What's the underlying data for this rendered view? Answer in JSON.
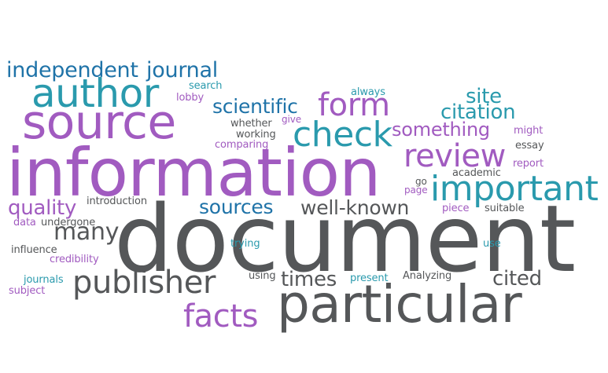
{
  "palette": {
    "teal": "#2a9aad",
    "purple": "#a15bc0",
    "dark": "#555759",
    "blue": "#1f73a8"
  },
  "words": [
    "document",
    "information",
    "source",
    "particular",
    "author",
    "important",
    "check",
    "form",
    "publisher",
    "review",
    "independent",
    "journal",
    "facts",
    "citation",
    "something",
    "site",
    "scientific",
    "sources",
    "well-known",
    "many",
    "cited",
    "times",
    "quality",
    "whether",
    "working",
    "comparing",
    "give",
    "search",
    "lobby",
    "always",
    "might",
    "essay",
    "report",
    "academic",
    "go",
    "page",
    "introduction",
    "suitable",
    "piece",
    "data",
    "undergone",
    "influence",
    "credibility",
    "trying",
    "use",
    "using",
    "present",
    "Analyzing",
    "journals",
    "subject"
  ]
}
